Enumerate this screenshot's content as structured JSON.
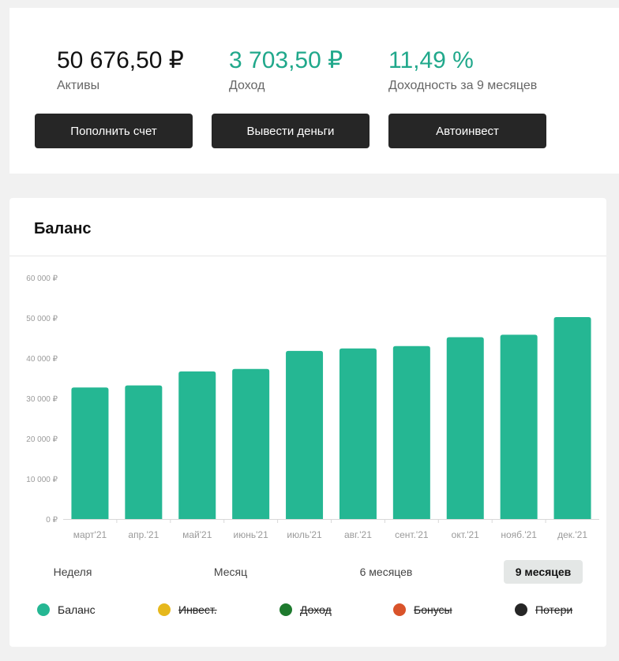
{
  "summary": {
    "assets": {
      "value": "50 676,50 ₽",
      "label": "Активы"
    },
    "income": {
      "value": "3 703,50 ₽",
      "label": "Доход"
    },
    "yield": {
      "value": "11,49 %",
      "label": "Доходность за 9 месяцев"
    }
  },
  "actions": {
    "deposit_label": "Пополнить счет",
    "withdraw_label": "Вывести деньги",
    "autoinvest_label": "Автоинвест"
  },
  "balance": {
    "title": "Баланс",
    "periods": [
      "Неделя",
      "Месяц",
      "6 месяцев",
      "9 месяцев"
    ],
    "active_period": "9 месяцев",
    "legend": [
      {
        "label": "Баланс",
        "color": "#25b793",
        "enabled": true
      },
      {
        "label": "Инвест.",
        "color": "#e6b81c",
        "enabled": false
      },
      {
        "label": "Доход",
        "color": "#1e7a2e",
        "enabled": false
      },
      {
        "label": "Бонусы",
        "color": "#d9532a",
        "enabled": false
      },
      {
        "label": "Потери",
        "color": "#262626",
        "enabled": false
      }
    ]
  },
  "chart_data": {
    "type": "bar",
    "categories": [
      "март'21",
      "апр.'21",
      "май'21",
      "июнь'21",
      "июль'21",
      "авг.'21",
      "сент.'21",
      "окт.'21",
      "нояб.'21",
      "дек.'21"
    ],
    "values": [
      32700,
      33200,
      36700,
      37300,
      41800,
      42400,
      43000,
      45200,
      45800,
      50200
    ],
    "yticks": [
      "0 ₽",
      "10 000 ₽",
      "20 000 ₽",
      "30 000 ₽",
      "40 000 ₽",
      "50 000 ₽",
      "60 000 ₽"
    ],
    "ylim": [
      0,
      60000
    ],
    "bar_color": "#25b793",
    "grid": false
  }
}
